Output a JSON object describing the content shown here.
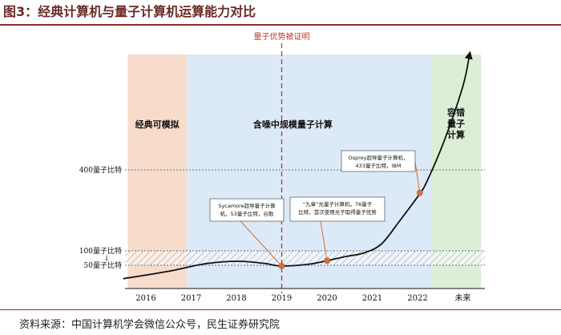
{
  "header": {
    "title": "图3：经典计算机与量子计算机运算能力对比"
  },
  "footer": {
    "source": "资料来源：中国计算机学会微信公众号，民生证券研究院"
  },
  "chart_data": {
    "type": "line",
    "title": "图3：经典计算机与量子计算机运算能力对比",
    "x_ticks": [
      "2016",
      "2017",
      "2018",
      "2019",
      "2020",
      "2021",
      "2022",
      "未来"
    ],
    "y_ticks": [
      {
        "value": 50,
        "label": "50量子比特"
      },
      {
        "value": 100,
        "label": "100量子比特"
      },
      {
        "value": 400,
        "label": "400量子比特"
      }
    ],
    "y_tick_extra": "↓",
    "ylim": [
      0,
      700
    ],
    "zones": [
      {
        "label": "经典可模拟",
        "from": 2015.6,
        "to": 2016.9,
        "color": "#f8dccb"
      },
      {
        "label": "含噪中规模量子计算",
        "from": 2016.9,
        "to": 2022.3,
        "color": "#dce9f7"
      },
      {
        "label": "容错量子计算",
        "label_lines": [
          "容错",
          "量子",
          "计算"
        ],
        "from": 2022.3,
        "to": 2023.4,
        "color": "#dcefd6"
      }
    ],
    "advantage_marker": {
      "x": 2019,
      "label": "量子优势被证明"
    },
    "hatched_band": [
      50,
      100
    ],
    "series": [
      {
        "x": [
          2015.5,
          2016.5,
          2017.3,
          2018.0,
          2018.6,
          2019.0,
          2019.6,
          2020.0,
          2020.4,
          2020.8,
          2021.2,
          2021.6,
          2022.0,
          2022.2,
          2022.6,
          2023.0,
          2023.15
        ],
        "y": [
          12,
          33,
          55,
          64,
          57,
          48,
          54,
          66,
          80,
          92,
          125,
          210,
          300,
          355,
          480,
          620,
          705
        ]
      }
    ],
    "annotations": [
      {
        "point": [
          2019.0,
          48
        ],
        "lines": [
          "Sycamore超导量子计算",
          "机，53量子比特，谷歌"
        ]
      },
      {
        "point": [
          2020.0,
          66
        ],
        "lines": [
          "“九章”光量子计算机，76量子",
          "比特，首次使用光子取得量子优势"
        ]
      },
      {
        "point": [
          2022.05,
          315
        ],
        "lines": [
          "Osprey超导量子计算机，",
          "433量子比特，IBM"
        ]
      }
    ],
    "grid": false
  }
}
